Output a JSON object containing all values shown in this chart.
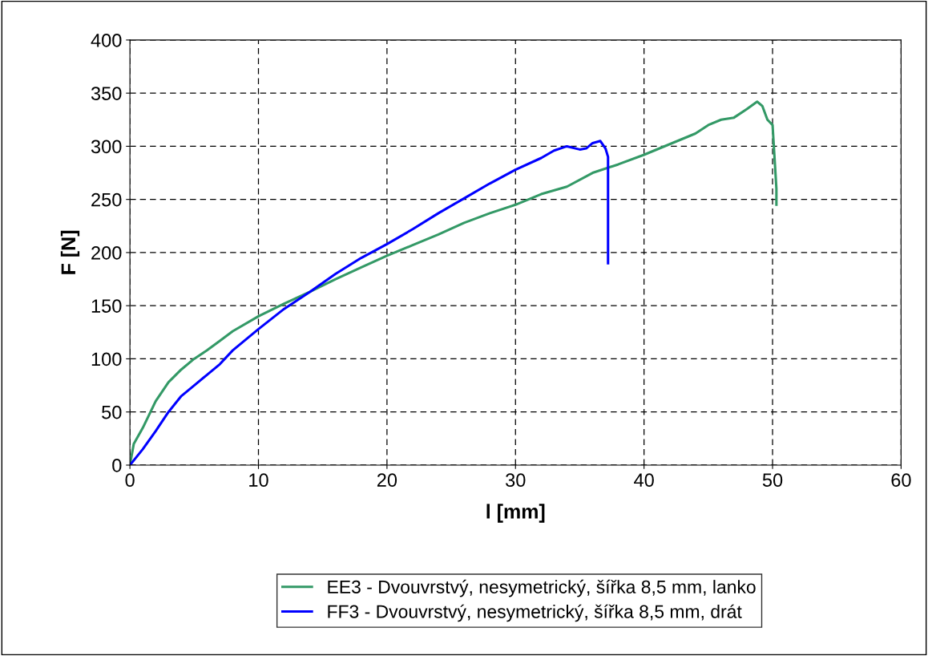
{
  "chart_data": {
    "type": "line",
    "xlabel": "l [mm]",
    "ylabel": "F [N]",
    "xlim": [
      0,
      60
    ],
    "xticks": [
      0,
      10,
      20,
      30,
      40,
      50,
      60
    ],
    "ylim": [
      0,
      400
    ],
    "yticks": [
      0,
      50,
      100,
      150,
      200,
      250,
      300,
      350,
      400
    ],
    "grid": true,
    "legend": "bottom",
    "marker": "none",
    "line_style": "solid",
    "series": [
      {
        "name": "EE3 - Dvouvrstvý, nesymetrický, šířka 8,5 mm, lanko",
        "color": "#339966",
        "x": [
          0,
          0.3,
          1,
          2,
          3,
          4,
          5,
          6,
          7,
          8,
          10,
          12,
          14,
          16,
          18,
          20,
          22,
          24,
          26,
          28,
          30,
          32,
          34,
          36,
          38,
          40,
          42,
          44,
          45,
          46,
          47,
          48,
          48.8,
          49.2,
          49.6,
          50,
          50.1,
          50.3,
          50.3
        ],
        "values": [
          0,
          20,
          35,
          60,
          78,
          90,
          100,
          108,
          117,
          126,
          140,
          152,
          163,
          175,
          186,
          197,
          207,
          217,
          228,
          237,
          245,
          255,
          262,
          275,
          283,
          292,
          302,
          312,
          320,
          325,
          327,
          335,
          342,
          338,
          325,
          320,
          300,
          260,
          245
        ]
      },
      {
        "name": "FF3 - Dvouvrstvý, nesymetrický, šířka 8,5 mm, drát",
        "color": "#0000ff",
        "x": [
          0,
          1,
          2,
          3,
          4,
          5,
          6,
          7,
          8,
          10,
          12,
          14,
          16,
          18,
          20,
          22,
          24,
          26,
          28,
          30,
          32,
          33,
          34,
          35,
          35.5,
          36,
          36.6,
          37,
          37.2,
          37.2
        ],
        "values": [
          0,
          15,
          32,
          50,
          65,
          75,
          85,
          95,
          108,
          128,
          147,
          163,
          180,
          195,
          208,
          222,
          237,
          251,
          265,
          278,
          289,
          296,
          300,
          297,
          298,
          303,
          305,
          298,
          290,
          190
        ]
      }
    ]
  }
}
